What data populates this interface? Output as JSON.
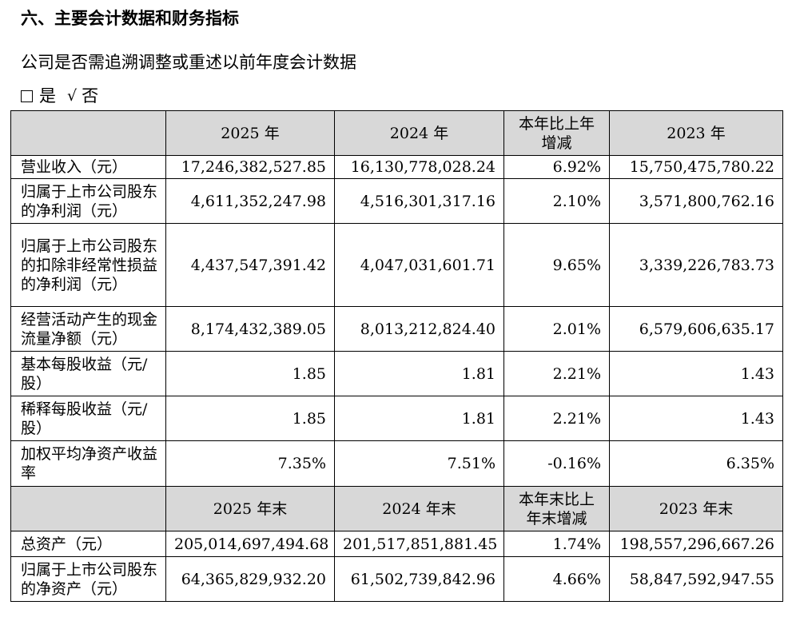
{
  "section": {
    "title": "六、主要会计数据和财务指标"
  },
  "restatement": {
    "question": "公司是否需追溯调整或重述以前年度会计数据",
    "yes_label": "是",
    "check_glyph": "√",
    "no_label": "否"
  },
  "table": {
    "header1": [
      "2025 年",
      "2024 年",
      "本年比上年增减",
      "2023 年"
    ],
    "rows1": [
      {
        "label": "营业收入（元）",
        "values": [
          "17,246,382,527.85",
          "16,130,778,028.24",
          "6.92%",
          "15,750,475,780.22"
        ]
      },
      {
        "label": "归属于上市公司股东的净利润（元）",
        "values": [
          "4,611,352,247.98",
          "4,516,301,317.16",
          "2.10%",
          "3,571,800,762.16"
        ]
      },
      {
        "label": "归属于上市公司股东的扣除非经常性损益的净利润（元）",
        "values": [
          "4,437,547,391.42",
          "4,047,031,601.71",
          "9.65%",
          "3,339,226,783.73"
        ]
      },
      {
        "label": "经营活动产生的现金流量净额（元）",
        "values": [
          "8,174,432,389.05",
          "8,013,212,824.40",
          "2.01%",
          "6,579,606,635.17"
        ]
      },
      {
        "label": "基本每股收益（元/股）",
        "values": [
          "1.85",
          "1.81",
          "2.21%",
          "1.43"
        ]
      },
      {
        "label": "稀释每股收益（元/股）",
        "values": [
          "1.85",
          "1.81",
          "2.21%",
          "1.43"
        ]
      },
      {
        "label": "加权平均净资产收益率",
        "values": [
          "7.35%",
          "7.51%",
          "-0.16%",
          "6.35%"
        ]
      }
    ],
    "header2": [
      "2025 年末",
      "2024 年末",
      "本年末比上年末增减",
      "2023 年末"
    ],
    "rows2": [
      {
        "label": "总资产（元）",
        "values": [
          "205,014,697,494.68",
          "201,517,851,881.45",
          "1.74%",
          "198,557,296,667.26"
        ]
      },
      {
        "label": "归属于上市公司股东的净资产（元）",
        "values": [
          "64,365,829,932.20",
          "61,502,739,842.96",
          "4.66%",
          "58,847,592,947.55"
        ]
      }
    ]
  }
}
